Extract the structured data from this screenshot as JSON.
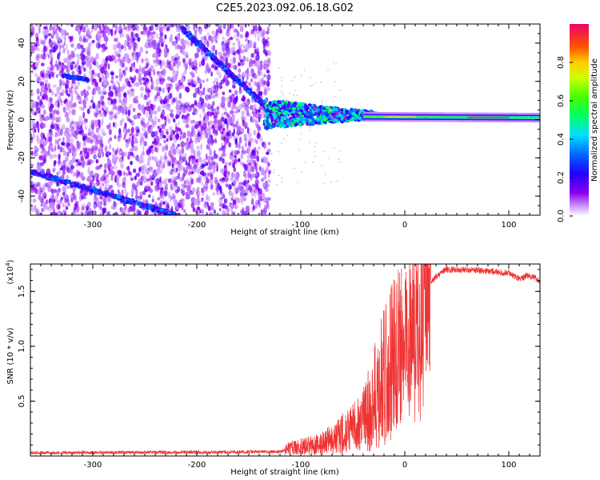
{
  "title": "C2E5.2023.092.06.18.G02",
  "chart_data": [
    {
      "type": "heatmap",
      "name": "spectrogram",
      "xlabel": "Height of straight line (km)",
      "ylabel": "Frequency (Hz)",
      "xlim": [
        -360,
        130
      ],
      "ylim": [
        -50,
        50
      ],
      "xticks": [
        -300,
        -200,
        -100,
        0,
        100
      ],
      "yticks": [
        -40,
        -20,
        0,
        20,
        40
      ],
      "colorbar": {
        "label": "Normalized spectral amplitude",
        "range": [
          0.0,
          1.0
        ],
        "ticks": [
          0.0,
          0.2,
          0.4,
          0.6,
          0.8
        ]
      },
      "features": {
        "noise_region_x": [
          -360,
          -130
        ],
        "descending_trace": {
          "x": [
            -215,
            -130
          ],
          "y": [
            48,
            5
          ]
        },
        "lower_trace": {
          "x": [
            -360,
            -220
          ],
          "y": [
            -27,
            -50
          ]
        },
        "left_line": {
          "x": [
            -330,
            -305
          ],
          "y": [
            23,
            21
          ]
        },
        "carrier": {
          "x": [
            -130,
            130
          ],
          "y": [
            3,
            1
          ]
        }
      }
    },
    {
      "type": "line",
      "name": "snr",
      "xlabel": "Height of straight line (km)",
      "ylabel": "SNR (10 * v/v)",
      "scale_label": "(x10",
      "scale_exp": "4",
      "scale_close": ")",
      "xlim": [
        -360,
        130
      ],
      "ylim": [
        0,
        1.75
      ],
      "xticks": [
        -300,
        -200,
        -100,
        0,
        100
      ],
      "yticks": [
        0.5,
        1.0,
        1.5
      ],
      "ytick_labels": [
        "0.5",
        "1.0",
        "1.5"
      ],
      "color": "#ee3333",
      "profile_x": [
        -360,
        -120,
        -110,
        -80,
        -60,
        -40,
        -30,
        -20,
        -10,
        0,
        10,
        20,
        30,
        40,
        60,
        80,
        100,
        110,
        120,
        130
      ],
      "profile_y": [
        0.03,
        0.04,
        0.08,
        0.12,
        0.22,
        0.35,
        0.55,
        0.8,
        1.0,
        1.15,
        1.35,
        1.52,
        1.64,
        1.7,
        1.7,
        1.69,
        1.67,
        1.62,
        1.65,
        1.6
      ]
    }
  ]
}
